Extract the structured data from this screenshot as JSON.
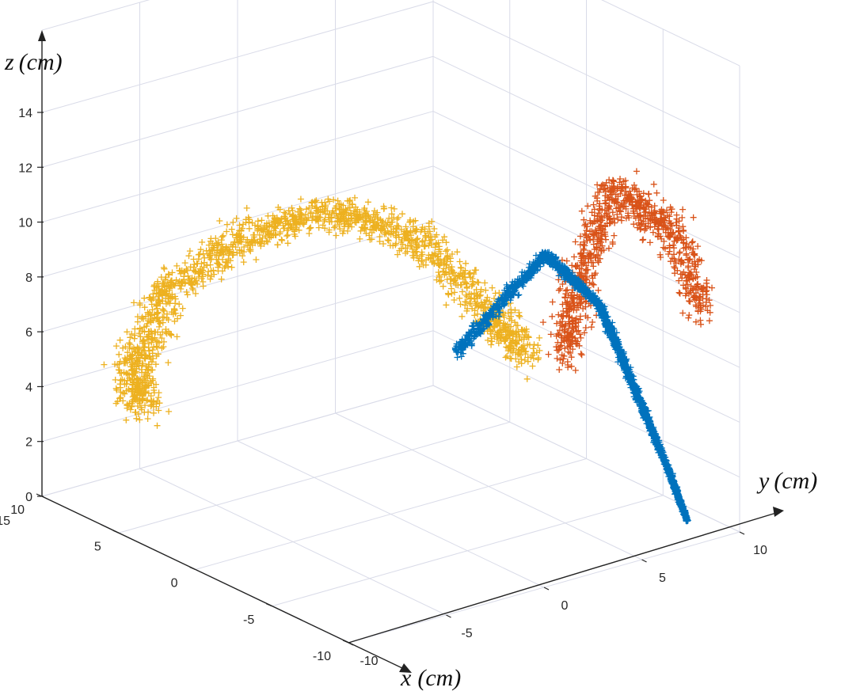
{
  "chart_data": {
    "type": "scatter",
    "title": "",
    "marker": "+",
    "axes": {
      "x": {
        "name": "x",
        "unit": "(cm)",
        "ticks": [
          -10,
          -5,
          0,
          5,
          10
        ],
        "range": [
          -10,
          10
        ]
      },
      "y": {
        "name": "y",
        "unit": "(cm)",
        "ticks": [
          -10,
          -5,
          0,
          5,
          10
        ],
        "range": [
          -10,
          10
        ]
      },
      "z": {
        "name": "z",
        "unit": "(cm)",
        "ticks": [
          0,
          2,
          4,
          6,
          8,
          10,
          12,
          14
        ],
        "range": [
          0,
          14
        ]
      }
    },
    "extra_x_tick": 15,
    "grid": true,
    "series": [
      {
        "color": "#EDB120",
        "description_points": [
          {
            "x": 10,
            "y": -5,
            "z": 2.2
          },
          {
            "x": 9,
            "y": -6,
            "z": 4.5
          },
          {
            "x": 7,
            "y": -6,
            "z": 7.5
          },
          {
            "x": 4,
            "y": -4,
            "z": 10.0
          },
          {
            "x": 1,
            "y": -2,
            "z": 11.2
          },
          {
            "x": -2,
            "y": 0,
            "z": 10.5
          },
          {
            "x": -4,
            "y": 2,
            "z": 8.0
          },
          {
            "x": -5,
            "y": 3,
            "z": 6.5
          }
        ]
      },
      {
        "color": "#D95319",
        "description_points": [
          {
            "x": -5,
            "y": 5,
            "z": 6.0
          },
          {
            "x": -6,
            "y": 5,
            "z": 9.5
          },
          {
            "x": -7,
            "y": 6,
            "z": 12.5
          },
          {
            "x": -8,
            "y": 8,
            "z": 11.0
          },
          {
            "x": -9,
            "y": 9,
            "z": 8.0
          }
        ]
      },
      {
        "color": "#0072BD",
        "description_points": [
          {
            "x": -3,
            "y": 1,
            "z": 6.5
          },
          {
            "x": -5,
            "y": 4,
            "z": 10.0
          },
          {
            "x": -6,
            "y": 6,
            "z": 8.0
          },
          {
            "x": -7,
            "y": 7,
            "z": 5.0
          },
          {
            "x": -8,
            "y": 8,
            "z": 2.0
          },
          {
            "x": -8.5,
            "y": 8.5,
            "z": 0.3
          }
        ]
      }
    ]
  }
}
